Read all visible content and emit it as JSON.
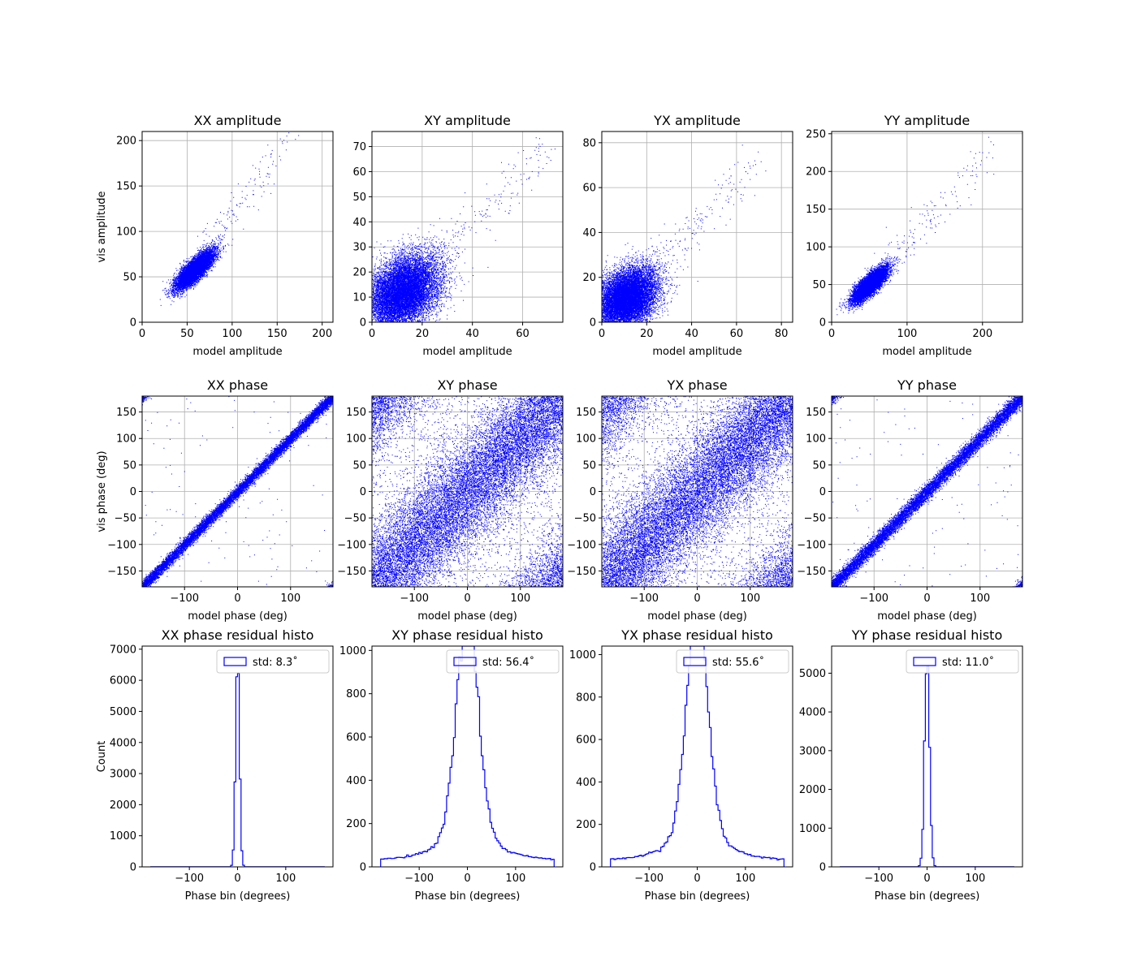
{
  "chart_data": [
    {
      "id": "xx-amp",
      "type": "scatter",
      "title": "XX amplitude",
      "xlabel": "model amplitude",
      "ylabel": "vis amplitude",
      "xlim": [
        0,
        212
      ],
      "ylim": [
        0,
        210
      ],
      "xticks": [
        0,
        50,
        100,
        150,
        200
      ],
      "yticks": [
        0,
        50,
        100,
        150,
        200
      ],
      "grid": true,
      "color": "#0000ff",
      "cloud": {
        "shape": "ellipse",
        "cx": 58,
        "cy": 58,
        "sx": 14,
        "sy": 4.5,
        "count": 9000
      },
      "sparse": {
        "from": [
          70,
          75
        ],
        "to": [
          165,
          205
        ],
        "count": 150
      }
    },
    {
      "id": "xy-amp",
      "type": "scatter",
      "title": "XY amplitude",
      "xlabel": "model amplitude",
      "ylabel": "",
      "xlim": [
        0,
        76
      ],
      "ylim": [
        0,
        76
      ],
      "xticks": [
        0,
        20,
        40,
        60
      ],
      "yticks": [
        0,
        10,
        20,
        30,
        40,
        50,
        60,
        70
      ],
      "grid": true,
      "color": "#0000ff",
      "cloud": {
        "shape": "ellipse",
        "cx": 12,
        "cy": 12,
        "sx": 8.5,
        "sy": 6,
        "count": 13000
      },
      "sparse": {
        "from": [
          20,
          20
        ],
        "to": [
          72,
          72
        ],
        "count": 200
      }
    },
    {
      "id": "yx-amp",
      "type": "scatter",
      "title": "YX amplitude",
      "xlabel": "model amplitude",
      "ylabel": "",
      "xlim": [
        0,
        85
      ],
      "ylim": [
        0,
        85
      ],
      "xticks": [
        0,
        20,
        40,
        60,
        80
      ],
      "yticks": [
        0,
        20,
        40,
        60,
        80
      ],
      "grid": true,
      "color": "#0000ff",
      "cloud": {
        "shape": "ellipse",
        "cx": 11,
        "cy": 11,
        "sx": 7.5,
        "sy": 5.5,
        "count": 13000
      },
      "sparse": {
        "from": [
          20,
          20
        ],
        "to": [
          70,
          72
        ],
        "count": 200
      }
    },
    {
      "id": "yy-amp",
      "type": "scatter",
      "title": "YY amplitude",
      "xlabel": "model amplitude",
      "ylabel": "",
      "xlim": [
        0,
        253
      ],
      "ylim": [
        0,
        253
      ],
      "xticks": [
        0,
        100,
        200
      ],
      "yticks": [
        0,
        50,
        100,
        150,
        200,
        250
      ],
      "grid": true,
      "color": "#0000ff",
      "cloud": {
        "shape": "ellipse",
        "cx": 50,
        "cy": 50,
        "sx": 15,
        "sy": 5,
        "count": 9000
      },
      "sparse": {
        "from": [
          70,
          75
        ],
        "to": [
          215,
          230
        ],
        "count": 150
      }
    },
    {
      "id": "xx-phase",
      "type": "scatter",
      "title": "XX phase",
      "xlabel": "model phase (deg)",
      "ylabel": "vis phase (deg)",
      "xlim": [
        -180,
        180
      ],
      "ylim": [
        -180,
        180
      ],
      "xticks": [
        -100,
        0,
        100
      ],
      "yticks": [
        -150,
        -100,
        -50,
        0,
        50,
        100,
        150
      ],
      "grid": true,
      "color": "#0000ff",
      "cloud": {
        "shape": "diagonal",
        "spread": 6,
        "count": 11000
      },
      "outliers": 120
    },
    {
      "id": "xy-phase",
      "type": "scatter",
      "title": "XY phase",
      "xlabel": "model phase (deg)",
      "ylabel": "",
      "xlim": [
        -180,
        180
      ],
      "ylim": [
        -180,
        180
      ],
      "xticks": [
        -100,
        0,
        100
      ],
      "yticks": [
        -150,
        -100,
        -50,
        0,
        50,
        100,
        150
      ],
      "grid": true,
      "color": "#0000ff",
      "cloud": {
        "shape": "diagonal",
        "spread": 55,
        "count": 16000
      },
      "outliers": 1500
    },
    {
      "id": "yx-phase",
      "type": "scatter",
      "title": "YX phase",
      "xlabel": "model phase (deg)",
      "ylabel": "",
      "xlim": [
        -180,
        180
      ],
      "ylim": [
        -180,
        180
      ],
      "xticks": [
        -100,
        0,
        100
      ],
      "yticks": [
        -150,
        -100,
        -50,
        0,
        50,
        100,
        150
      ],
      "grid": true,
      "color": "#0000ff",
      "cloud": {
        "shape": "diagonal",
        "spread": 54,
        "count": 16000
      },
      "outliers": 1500
    },
    {
      "id": "yy-phase",
      "type": "scatter",
      "title": "YY phase",
      "xlabel": "model phase (deg)",
      "ylabel": "",
      "xlim": [
        -180,
        180
      ],
      "ylim": [
        -180,
        180
      ],
      "xticks": [
        -100,
        0,
        100
      ],
      "yticks": [
        -150,
        -100,
        -50,
        0,
        50,
        100,
        150
      ],
      "grid": true,
      "color": "#0000ff",
      "cloud": {
        "shape": "diagonal",
        "spread": 8,
        "count": 11000
      },
      "outliers": 120
    },
    {
      "id": "xx-histo",
      "type": "histogram",
      "title": "XX phase residual histo",
      "xlabel": "Phase bin (degrees)",
      "ylabel": "Count",
      "xlim": [
        -198,
        198
      ],
      "ylim": [
        0,
        7100
      ],
      "xticks": [
        -100,
        0,
        100
      ],
      "yticks": [
        0,
        1000,
        2000,
        3000,
        4000,
        5000,
        6000,
        7000
      ],
      "grid": false,
      "color": "#0000ff",
      "bins": {
        "start": -180,
        "end": 180,
        "count": 100
      },
      "profile": {
        "peak": 6800,
        "sigma": 4,
        "tail_amp": 0,
        "tail_scale": 0,
        "floor": 2
      },
      "legend": {
        "label": "std: 8.3$^\\circ$",
        "text": "std: 8.3˚",
        "placement": "upper right"
      }
    },
    {
      "id": "xy-histo",
      "type": "histogram",
      "title": "XY phase residual histo",
      "xlabel": "Phase bin (degrees)",
      "ylabel": "",
      "xlim": [
        -198,
        198
      ],
      "ylim": [
        0,
        1020
      ],
      "xticks": [
        -100,
        0,
        100
      ],
      "yticks": [
        0,
        200,
        400,
        600,
        800,
        1000
      ],
      "grid": false,
      "color": "#0000ff",
      "bins": {
        "start": -180,
        "end": 180,
        "count": 100
      },
      "profile": {
        "peak": 960,
        "sigma": 22,
        "tail_amp": 260,
        "tail_scale": 48,
        "floor": 30
      },
      "legend": {
        "label": "std: 56.4$^\\circ$",
        "text": "std: 56.4˚",
        "placement": "upper right"
      }
    },
    {
      "id": "yx-histo",
      "type": "histogram",
      "title": "YX phase residual histo",
      "xlabel": "Phase bin (degrees)",
      "ylabel": "",
      "xlim": [
        -198,
        198
      ],
      "ylim": [
        0,
        1040
      ],
      "xticks": [
        -100,
        0,
        100
      ],
      "yticks": [
        0,
        200,
        400,
        600,
        800,
        1000
      ],
      "grid": false,
      "color": "#0000ff",
      "bins": {
        "start": -180,
        "end": 180,
        "count": 100
      },
      "profile": {
        "peak": 1000,
        "sigma": 22,
        "tail_amp": 260,
        "tail_scale": 48,
        "floor": 30
      },
      "legend": {
        "label": "std: 55.6$^\\circ$",
        "text": "std: 55.6˚",
        "placement": "upper right"
      }
    },
    {
      "id": "yy-histo",
      "type": "histogram",
      "title": "YY phase residual histo",
      "xlabel": "Phase bin (degrees)",
      "ylabel": "",
      "xlim": [
        -198,
        198
      ],
      "ylim": [
        0,
        5700
      ],
      "xticks": [
        -100,
        0,
        100
      ],
      "yticks": [
        0,
        1000,
        2000,
        3000,
        4000,
        5000
      ],
      "grid": false,
      "color": "#0000ff",
      "bins": {
        "start": -180,
        "end": 180,
        "count": 100
      },
      "profile": {
        "peak": 5500,
        "sigma": 5,
        "tail_amp": 0,
        "tail_scale": 0,
        "floor": 3
      },
      "legend": {
        "label": "std: 11.0$^\\circ$",
        "text": "std: 11.0˚",
        "placement": "upper right"
      }
    }
  ]
}
